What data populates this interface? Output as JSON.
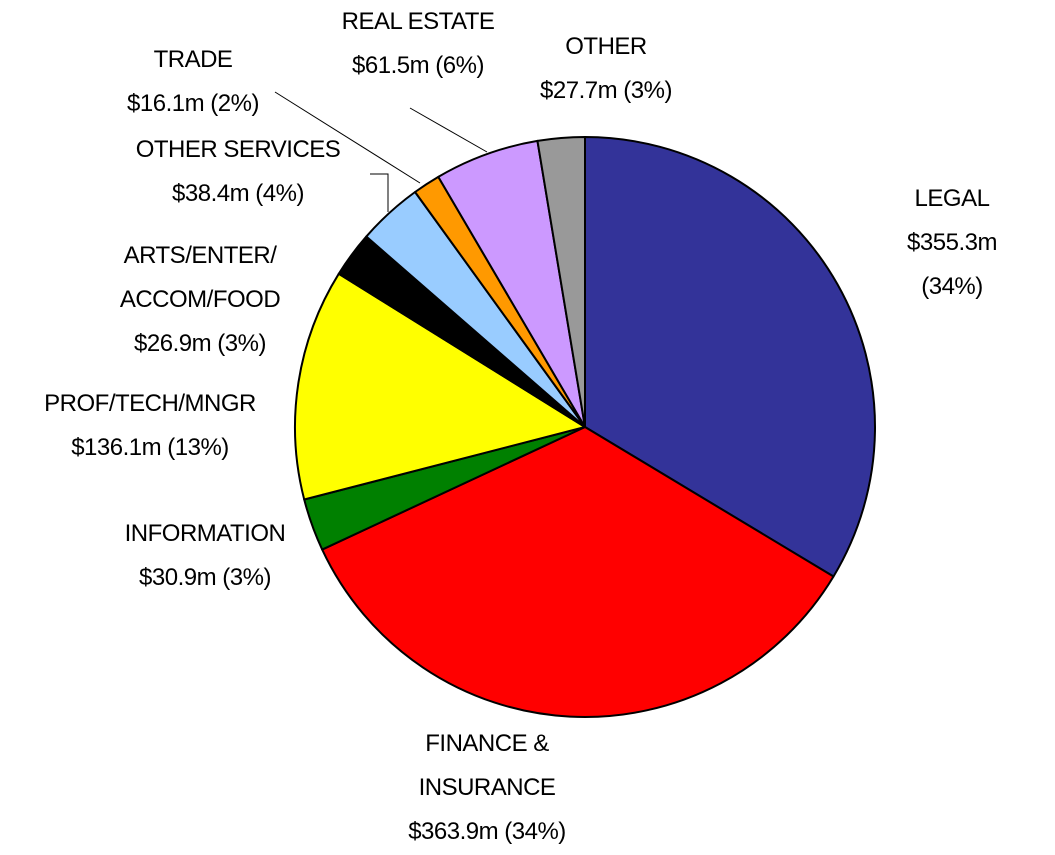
{
  "chart_data": {
    "type": "pie",
    "categories": [
      "LEGAL",
      "FINANCE &\nINSURANCE",
      "INFORMATION",
      "PROF/TECH/MNGR",
      "ARTS/ENTER/\nACCOM/FOOD",
      "OTHER SERVICES",
      "TRADE",
      "REAL ESTATE",
      "OTHER"
    ],
    "values": [
      355.3,
      363.9,
      30.9,
      136.1,
      26.9,
      38.4,
      16.1,
      61.5,
      27.7
    ],
    "value_labels": [
      "$355.3m (34%)",
      "$363.9m (34%)",
      "$30.9m (3%)",
      "$136.1m (13%)",
      "$26.9m (3%)",
      "$38.4m (4%)",
      "$16.1m (2%)",
      "$61.5m (6%)",
      "$27.7m (3%)"
    ],
    "colors": [
      "#333399",
      "#ff0000",
      "#008000",
      "#ffff00",
      "#000000",
      "#99ccff",
      "#ff9900",
      "#cc99ff",
      "#999999"
    ]
  }
}
